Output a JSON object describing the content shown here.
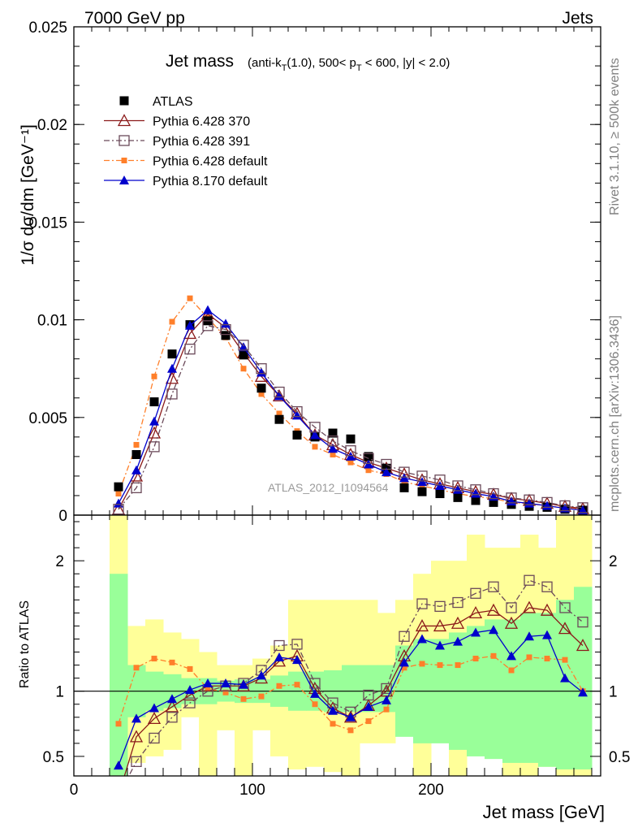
{
  "header": {
    "left": "7000 GeV pp",
    "right": "Jets",
    "title_main": "Jet mass",
    "title_detail": "(anti-k_T(1.0), 500< p_T < 600, |y| < 2.0)"
  },
  "side_labels": {
    "rivet": "Rivet 3.1.10, ≥ 500k events",
    "mcplots": "mcplots.cern.ch [arXiv:1306.3436]"
  },
  "watermark": "ATLAS_2012_I1094564",
  "chart_data": [
    {
      "type": "line",
      "panel": "main",
      "xlabel": "Jet mass [GeV]",
      "ylabel": "1/σ dσ/dm [GeV⁻¹]",
      "xlim": [
        0,
        295
      ],
      "ylim": [
        0,
        0.025
      ],
      "yticks": [
        0,
        0.005,
        0.01,
        0.015,
        0.02,
        0.025
      ],
      "ytick_labels": [
        "0",
        "0.005",
        "0.01",
        "0.015",
        "0.02",
        "0.025"
      ],
      "legend_position": "top-left",
      "x": [
        25,
        35,
        45,
        55,
        65,
        75,
        85,
        95,
        105,
        115,
        125,
        135,
        145,
        155,
        165,
        175,
        185,
        195,
        205,
        215,
        225,
        235,
        245,
        255,
        265,
        275,
        285
      ],
      "series": [
        {
          "name": "ATLAS",
          "color": "#000000",
          "marker": "filled-square",
          "line": "none",
          "values": [
            0.00145,
            0.0031,
            0.0058,
            0.00825,
            0.00975,
            0.00995,
            0.0092,
            0.0082,
            0.0065,
            0.0049,
            0.0041,
            0.004,
            0.0042,
            0.0039,
            0.003,
            0.0024,
            0.0014,
            0.0012,
            0.0011,
            0.0009,
            0.00075,
            0.00065,
            0.00055,
            0.00045,
            0.0004,
            0.0003,
            0.00025
          ]
        },
        {
          "name": "Pythia 6.428 370",
          "color": "#8b1a1a",
          "marker": "open-triangle",
          "line": "solid",
          "values": [
            0.0003,
            0.002,
            0.0042,
            0.007,
            0.0093,
            0.0103,
            0.0096,
            0.0083,
            0.0071,
            0.0061,
            0.0052,
            0.0041,
            0.0036,
            0.0031,
            0.0027,
            0.0024,
            0.0021,
            0.0018,
            0.0016,
            0.0014,
            0.0012,
            0.00106,
            0.00085,
            0.00075,
            0.0006,
            0.00045,
            0.00033
          ]
        },
        {
          "name": "Pythia 6.428 391",
          "color": "#6b4a5a",
          "marker": "open-square",
          "line": "dashdot",
          "values": [
            0.0003,
            0.0014,
            0.0035,
            0.0062,
            0.0085,
            0.0097,
            0.0095,
            0.0087,
            0.0075,
            0.0063,
            0.0053,
            0.0045,
            0.0038,
            0.0033,
            0.0029,
            0.0026,
            0.0022,
            0.002,
            0.0018,
            0.0015,
            0.0013,
            0.0011,
            0.00088,
            0.00078,
            0.00065,
            0.00048,
            0.00038
          ]
        },
        {
          "name": "Pythia 6.428 default",
          "color": "#ff7f2a",
          "marker": "filled-square-small",
          "line": "dashdot",
          "values": [
            0.0011,
            0.0036,
            0.0071,
            0.0099,
            0.0111,
            0.0101,
            0.0091,
            0.0075,
            0.0062,
            0.0052,
            0.0043,
            0.0035,
            0.0031,
            0.0027,
            0.0023,
            0.0021,
            0.0017,
            0.0015,
            0.0013,
            0.0011,
            0.00095,
            0.00085,
            0.00065,
            0.00058,
            0.00048,
            0.00038,
            0.0003
          ]
        },
        {
          "name": "Pythia 8.170 default",
          "color": "#0000cc",
          "marker": "filled-triangle",
          "line": "solid",
          "values": [
            0.0006,
            0.0023,
            0.0048,
            0.0075,
            0.0097,
            0.0105,
            0.0098,
            0.0086,
            0.0073,
            0.0061,
            0.0051,
            0.0041,
            0.0034,
            0.003,
            0.0026,
            0.0022,
            0.0019,
            0.0017,
            0.0015,
            0.0013,
            0.0011,
            0.00095,
            0.0007,
            0.0006,
            0.00048,
            0.00035,
            0.00025
          ]
        }
      ]
    },
    {
      "type": "line",
      "panel": "ratio",
      "xlabel": "Jet mass [GeV]",
      "ylabel": "Ratio to ATLAS",
      "xlim": [
        0,
        295
      ],
      "ylim": [
        0.35,
        2.35
      ],
      "xticks": [
        0,
        100,
        200
      ],
      "xtick_labels": [
        "0",
        "100",
        "200"
      ],
      "yticks": [
        0.5,
        1,
        2
      ],
      "ytick_labels": [
        "0.5",
        "1",
        "2"
      ],
      "x": [
        25,
        35,
        45,
        55,
        65,
        75,
        85,
        95,
        105,
        115,
        125,
        135,
        145,
        155,
        165,
        175,
        185,
        195,
        205,
        215,
        225,
        235,
        245,
        255,
        265,
        275,
        285
      ],
      "bands": {
        "bin_edges": [
          20,
          30,
          40,
          50,
          60,
          70,
          80,
          90,
          100,
          110,
          120,
          130,
          140,
          150,
          160,
          170,
          180,
          190,
          200,
          210,
          220,
          230,
          240,
          250,
          260,
          270,
          280,
          290
        ],
        "stat_color": "#99ff99",
        "total_color": "#ffff99",
        "stat_lo": [
          0.35,
          0.8,
          0.85,
          0.87,
          0.9,
          0.9,
          0.92,
          0.91,
          0.91,
          0.88,
          0.85,
          0.85,
          0.84,
          0.84,
          0.84,
          0.84,
          0.65,
          0.6,
          0.6,
          0.55,
          0.5,
          0.48,
          0.45,
          0.45,
          0.42,
          0.4,
          0.4
        ],
        "stat_hi": [
          1.9,
          1.2,
          1.15,
          1.13,
          1.1,
          1.1,
          1.08,
          1.09,
          1.09,
          1.12,
          1.15,
          1.15,
          1.16,
          1.2,
          1.2,
          1.2,
          1.35,
          1.4,
          1.4,
          1.45,
          1.5,
          1.55,
          1.55,
          1.6,
          1.6,
          1.7,
          1.8
        ],
        "total_lo": [
          0.35,
          0.45,
          0.5,
          0.55,
          0.8,
          0.35,
          0.7,
          0.35,
          0.7,
          0.5,
          0.4,
          0.42,
          0.38,
          0.35,
          0.6,
          0.6,
          0.75,
          0.35,
          0.8,
          0.35,
          0.7,
          0.7,
          0.35,
          0.35,
          0.42,
          0.35,
          0.35
        ],
        "total_hi": [
          2.35,
          1.5,
          1.55,
          1.45,
          1.4,
          1.3,
          1.2,
          1.2,
          1.25,
          1.35,
          1.7,
          1.7,
          1.7,
          1.7,
          1.7,
          1.6,
          1.7,
          1.9,
          2.0,
          2.0,
          2.2,
          2.1,
          2.1,
          2.2,
          2.1,
          2.35,
          2.35
        ]
      },
      "series": [
        {
          "name": "Pythia 6.428 370",
          "color": "#8b1a1a",
          "marker": "open-triangle",
          "line": "solid",
          "values": [
            0.2,
            0.65,
            0.79,
            0.88,
            0.97,
            1.04,
            1.04,
            1.04,
            1.1,
            1.23,
            1.27,
            1.02,
            0.87,
            0.8,
            0.89,
            1.0,
            1.27,
            1.5,
            1.5,
            1.52,
            1.6,
            1.62,
            1.52,
            1.64,
            1.62,
            1.48,
            1.35
          ]
        },
        {
          "name": "Pythia 6.428 391",
          "color": "#6b4a5a",
          "marker": "open-square",
          "line": "dashdot",
          "values": [
            0.2,
            0.46,
            0.64,
            0.8,
            0.91,
            1.0,
            1.04,
            1.06,
            1.16,
            1.35,
            1.36,
            1.06,
            0.91,
            0.84,
            0.97,
            1.02,
            1.42,
            1.67,
            1.65,
            1.68,
            1.75,
            1.8,
            1.64,
            1.85,
            1.8,
            1.64,
            1.53
          ]
        },
        {
          "name": "Pythia 6.428 default",
          "color": "#ff7f2a",
          "marker": "filled-square-small",
          "line": "dashdot",
          "values": [
            0.75,
            1.18,
            1.25,
            1.22,
            1.17,
            1.02,
            0.99,
            0.94,
            0.96,
            1.04,
            1.05,
            0.9,
            0.75,
            0.7,
            0.77,
            0.86,
            1.18,
            1.21,
            1.2,
            1.2,
            1.25,
            1.27,
            1.16,
            1.26,
            1.25,
            1.24,
            1.0
          ]
        },
        {
          "name": "Pythia 8.170 default",
          "color": "#0000cc",
          "marker": "filled-triangle",
          "line": "solid",
          "values": [
            0.43,
            0.79,
            0.87,
            0.94,
            1.01,
            1.06,
            1.06,
            1.05,
            1.12,
            1.26,
            1.24,
            0.98,
            0.85,
            0.8,
            0.88,
            0.93,
            1.22,
            1.4,
            1.35,
            1.38,
            1.45,
            1.47,
            1.27,
            1.42,
            1.43,
            1.1,
            0.99
          ]
        }
      ]
    }
  ]
}
